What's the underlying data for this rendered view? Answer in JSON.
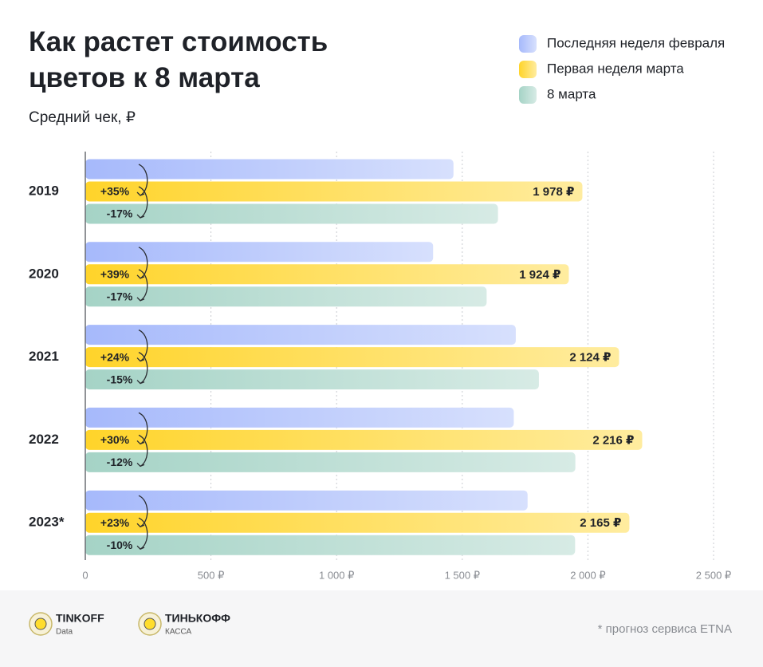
{
  "chart_data": {
    "type": "bar",
    "orientation": "horizontal",
    "title": "Как растет стоимость цветов к 8 марта",
    "subtitle": "Средний чек, ₽",
    "categories": [
      "2019",
      "2020",
      "2021",
      "2022",
      "2023*"
    ],
    "series": [
      {
        "name": "Последняя неделя февраля",
        "color": "#a6b9fb",
        "values": [
          1465,
          1384,
          1713,
          1705,
          1760
        ]
      },
      {
        "name": "Первая неделя марта",
        "color": "#ffd42a",
        "values": [
          1978,
          1924,
          2124,
          2216,
          2165
        ],
        "value_labels": [
          "1 978 ₽",
          "1 924 ₽",
          "2 124 ₽",
          "2 216 ₽",
          "2 165 ₽"
        ]
      },
      {
        "name": "8 марта",
        "color": "#a5d3c6",
        "values": [
          1642,
          1597,
          1805,
          1950,
          1949
        ]
      }
    ],
    "annotations": [
      {
        "growth": "+35%",
        "decline": "-17%"
      },
      {
        "growth": "+39%",
        "decline": "-17%"
      },
      {
        "growth": "+24%",
        "decline": "-15%"
      },
      {
        "growth": "+30%",
        "decline": "-12%"
      },
      {
        "growth": "+23%",
        "decline": "-10%"
      }
    ],
    "xlim": [
      0,
      2500
    ],
    "xticks": [
      0,
      {
        "value": 500,
        "label": "500 ₽"
      },
      {
        "value": 1000,
        "label": "1 000 ₽"
      },
      {
        "value": 1500,
        "label": "1 500 ₽"
      },
      {
        "value": 2000,
        "label": "2 000 ₽"
      },
      {
        "value": 2500,
        "label": "2 500 ₽"
      }
    ],
    "grid": true,
    "legend": "top-right",
    "footnote": "* прогноз сервиса ETNA",
    "logos": [
      {
        "name": "TINKOFF",
        "sub": "Data"
      },
      {
        "name": "ТИНЬКОФФ",
        "sub": "КАССА"
      }
    ]
  }
}
